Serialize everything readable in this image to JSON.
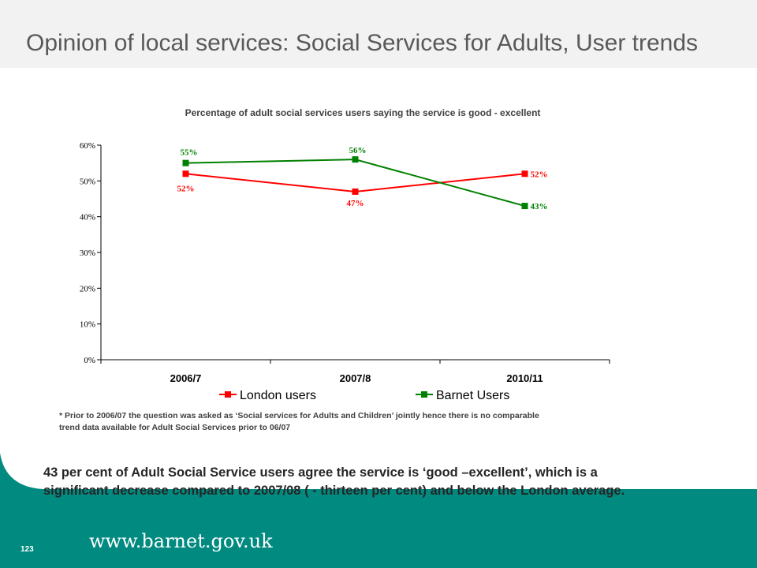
{
  "header": {
    "title": "Opinion of local services: Social Services for Adults, User trends"
  },
  "chart_data": {
    "type": "line",
    "title": "Percentage of adult social services users saying the service is good - excellent",
    "categories": [
      "2006/7",
      "2007/8",
      "2010/11"
    ],
    "series": [
      {
        "name": "London users",
        "values": [
          52,
          47,
          52
        ],
        "labels": [
          "52%",
          "47%",
          "52%"
        ],
        "color": "#ff0000"
      },
      {
        "name": "Barnet Users",
        "values": [
          55,
          56,
          43
        ],
        "labels": [
          "55%",
          "56%",
          "43%"
        ],
        "color": "#008000"
      }
    ],
    "yticks": [
      "0%",
      "10%",
      "20%",
      "30%",
      "40%",
      "50%",
      "60%"
    ],
    "ylim": [
      0,
      60
    ],
    "grid": false,
    "legend_position": "bottom"
  },
  "footnote": {
    "line1": "* Prior to 2006/07 the question was asked as ‘Social services for Adults and Children’ jointly hence there is no comparable",
    "line2": "trend data available for Adult Social Services prior to 06/07"
  },
  "summary": {
    "line1": "43 per cent of Adult Social Service users agree the service is  ‘good –excellent’, which is  a",
    "line2": "significant decrease compared to 2007/08 ( - thirteen per cent)  and below the London average."
  },
  "footer": {
    "page_number": "123",
    "website": "www.barnet.gov.uk"
  },
  "colors": {
    "footer_teal": "#008a80",
    "title_background": "#f2f2f2"
  }
}
